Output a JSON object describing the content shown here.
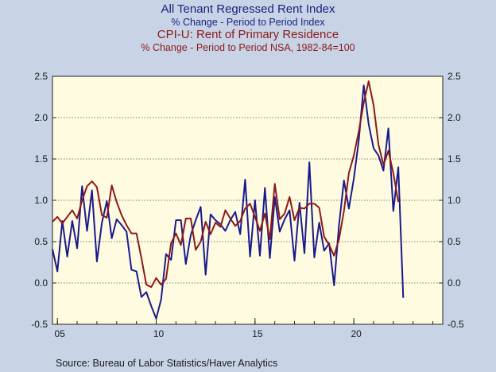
{
  "header": {
    "title1": "All Tenant Regressed Rent Index",
    "subtitle1": "% Change - Period to Period    Index",
    "title2": "CPI-U: Rent of Primary Residence",
    "subtitle2": "% Change - Period to Period    NSA, 1982-84=100"
  },
  "source": "Source:  Bureau of Labor Statistics/Haver Analytics",
  "colors": {
    "background": "#c8d3e6",
    "plot": "#fffbe0",
    "series1": "#1a1a8c",
    "series2": "#8b1a1a"
  },
  "chart_data": {
    "type": "line",
    "frequency": "quarterly",
    "xlim": [
      2004.75,
      2024.5
    ],
    "ylim": [
      -0.5,
      2.5
    ],
    "grid": {
      "horizontal": true,
      "vertical": false
    },
    "x_ticks": [
      {
        "value": 2005,
        "label": "05"
      },
      {
        "value": 2010,
        "label": "10"
      },
      {
        "value": 2015,
        "label": "15"
      },
      {
        "value": 2020,
        "label": "20"
      }
    ],
    "y_ticks_left": [
      "2.5",
      "2.0",
      "1.5",
      "1.0",
      "0.5",
      "0.0",
      "-0.5"
    ],
    "y_ticks_right": [
      "2.5",
      "2.0",
      "1.5",
      "1.0",
      "0.5",
      "0.0",
      "-0.5"
    ],
    "series": [
      {
        "name": "All Tenant Regressed Rent Index",
        "color": "#1a1a8c",
        "start": 2004.75,
        "step": 0.25,
        "values": [
          0.41,
          0.14,
          0.75,
          0.32,
          0.75,
          0.42,
          1.17,
          0.63,
          1.12,
          0.26,
          0.73,
          0.99,
          0.54,
          0.77,
          0.7,
          0.62,
          0.16,
          0.14,
          -0.17,
          -0.11,
          -0.28,
          -0.43,
          -0.2,
          0.35,
          0.28,
          0.76,
          0.76,
          0.23,
          0.58,
          0.76,
          0.92,
          0.1,
          0.83,
          0.76,
          0.71,
          0.63,
          0.76,
          0.86,
          0.59,
          1.25,
          0.32,
          1.0,
          0.33,
          1.15,
          0.3,
          1.04,
          0.62,
          0.77,
          0.88,
          0.27,
          0.97,
          0.36,
          1.46,
          0.31,
          0.73,
          0.39,
          0.48,
          -0.03,
          0.7,
          1.24,
          0.9,
          1.26,
          1.72,
          2.39,
          1.92,
          1.63,
          1.54,
          1.36,
          1.87,
          0.87,
          1.4,
          -0.18
        ]
      },
      {
        "name": "CPI-U: Rent of Primary Residence",
        "color": "#8b1a1a",
        "start": 2004.75,
        "step": 0.25,
        "values": [
          0.74,
          0.8,
          0.72,
          0.8,
          0.88,
          0.78,
          1.0,
          1.17,
          1.23,
          1.16,
          0.82,
          0.79,
          1.18,
          0.98,
          0.82,
          0.7,
          0.6,
          0.6,
          0.3,
          -0.02,
          -0.05,
          0.06,
          -0.02,
          0.05,
          0.48,
          0.6,
          0.46,
          0.78,
          0.78,
          0.4,
          0.5,
          0.74,
          0.59,
          0.73,
          0.68,
          0.88,
          0.78,
          0.69,
          0.75,
          0.9,
          0.96,
          0.8,
          0.63,
          0.84,
          0.53,
          1.2,
          0.77,
          0.84,
          1.04,
          0.76,
          0.91,
          0.9,
          0.96,
          0.96,
          0.91,
          0.56,
          0.46,
          0.33,
          0.53,
          0.87,
          1.33,
          1.54,
          1.83,
          2.18,
          2.44,
          2.15,
          1.67,
          1.43,
          1.6,
          1.33,
          0.98
        ]
      }
    ]
  }
}
